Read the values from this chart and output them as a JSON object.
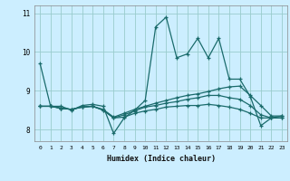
{
  "xlabel": "Humidex (Indice chaleur)",
  "background_color": "#cceeff",
  "grid_color": "#99cccc",
  "line_color": "#1a6b6b",
  "x": [
    0,
    1,
    2,
    3,
    4,
    5,
    6,
    7,
    8,
    9,
    10,
    11,
    12,
    13,
    14,
    15,
    16,
    17,
    18,
    19,
    20,
    21,
    22,
    23
  ],
  "line1": [
    9.7,
    8.6,
    8.6,
    8.5,
    8.62,
    8.65,
    8.6,
    7.9,
    8.3,
    8.5,
    8.75,
    10.65,
    10.9,
    9.85,
    9.95,
    10.35,
    9.85,
    10.35,
    9.3,
    9.3,
    8.85,
    8.1,
    8.3,
    8.35
  ],
  "line2": [
    8.6,
    8.6,
    8.55,
    8.52,
    8.58,
    8.6,
    8.52,
    8.32,
    8.42,
    8.52,
    8.6,
    8.68,
    8.75,
    8.82,
    8.88,
    8.92,
    8.98,
    9.05,
    9.1,
    9.12,
    8.88,
    8.62,
    8.35,
    8.35
  ],
  "line3": [
    8.6,
    8.6,
    8.55,
    8.52,
    8.58,
    8.6,
    8.5,
    8.3,
    8.38,
    8.48,
    8.58,
    8.62,
    8.68,
    8.72,
    8.78,
    8.82,
    8.88,
    8.88,
    8.82,
    8.78,
    8.62,
    8.38,
    8.3,
    8.3
  ],
  "line4": [
    8.6,
    8.6,
    8.55,
    8.52,
    8.58,
    8.6,
    8.5,
    8.3,
    8.32,
    8.42,
    8.48,
    8.52,
    8.58,
    8.6,
    8.62,
    8.62,
    8.65,
    8.62,
    8.58,
    8.52,
    8.42,
    8.3,
    8.3,
    8.3
  ],
  "ylim": [
    7.7,
    11.2
  ],
  "yticks": [
    8,
    9,
    10,
    11
  ],
  "xlim": [
    -0.5,
    23.5
  ]
}
